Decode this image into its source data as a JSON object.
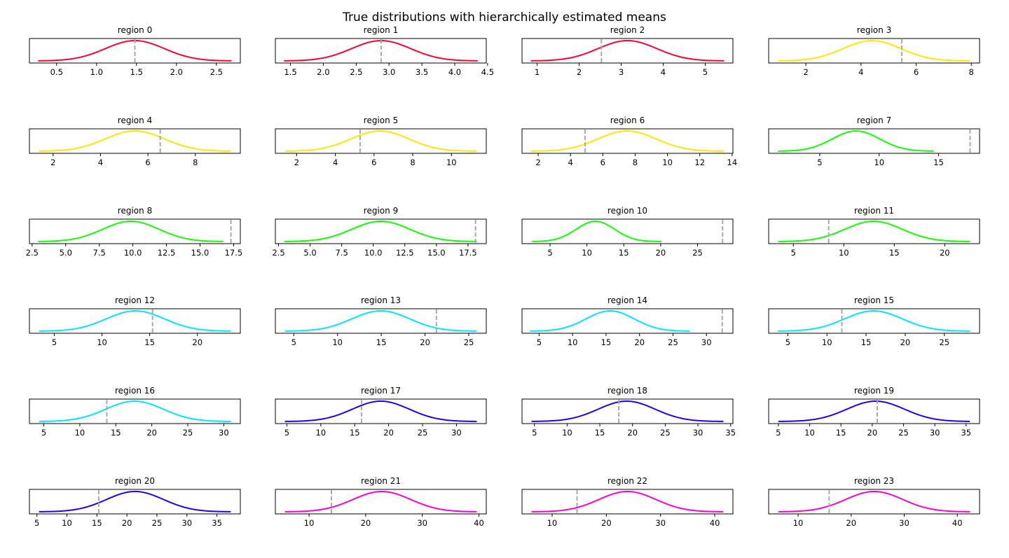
{
  "figure": {
    "title": "True distributions with hierarchically estimated means"
  },
  "colors": {
    "red": "#ff0033",
    "yellow": "#ffe600",
    "green": "#11ff00",
    "cyan": "#00e5ff",
    "blue": "#2200ee",
    "magenta": "#ff00d0",
    "estimate": "#a9a9a9"
  },
  "chart_data": [
    {
      "type": "line",
      "title": "region 0",
      "color": "red",
      "mu": 1.48,
      "sigma": 0.37,
      "x_range": [
        0.27,
        2.69
      ],
      "estimated_mean": 1.48,
      "xlim": [
        0.16,
        2.8
      ],
      "xticks": [
        "0.5",
        "1.0",
        "1.5",
        "2.0",
        "2.5"
      ],
      "xtick_values": [
        0.5,
        1.0,
        1.5,
        2.0,
        2.5
      ]
    },
    {
      "type": "line",
      "title": "region 1",
      "color": "red",
      "mu": 2.88,
      "sigma": 0.45,
      "x_range": [
        1.4,
        4.35
      ],
      "estimated_mean": 2.88,
      "xlim": [
        1.27,
        4.48
      ],
      "xticks": [
        "1.5",
        "2.0",
        "2.5",
        "3.0",
        "3.5",
        "4.0",
        "4.5"
      ],
      "xtick_values": [
        1.5,
        2.0,
        2.5,
        3.0,
        3.5,
        4.0,
        4.5
      ]
    },
    {
      "type": "line",
      "title": "region 2",
      "color": "red",
      "mu": 3.15,
      "sigma": 0.7,
      "x_range": [
        0.85,
        5.45
      ],
      "estimated_mean": 2.53,
      "xlim": [
        0.64,
        5.66
      ],
      "xticks": [
        "1",
        "2",
        "3",
        "4",
        "5"
      ],
      "xtick_values": [
        1,
        2,
        3,
        4,
        5
      ]
    },
    {
      "type": "line",
      "title": "region 3",
      "color": "yellow",
      "mu": 4.4,
      "sigma": 1.05,
      "x_range": [
        1.0,
        7.95
      ],
      "estimated_mean": 5.48,
      "xlim": [
        0.65,
        8.3
      ],
      "xticks": [
        "2",
        "4",
        "6",
        "8"
      ],
      "xtick_values": [
        2,
        4,
        6,
        8
      ]
    },
    {
      "type": "line",
      "title": "region 4",
      "color": "yellow",
      "mu": 5.45,
      "sigma": 1.25,
      "x_range": [
        1.4,
        9.5
      ],
      "estimated_mean": 6.52,
      "xlim": [
        1.0,
        9.9
      ],
      "xticks": [
        "2",
        "4",
        "6",
        "8"
      ],
      "xtick_values": [
        2,
        4,
        6,
        8
      ]
    },
    {
      "type": "line",
      "title": "region 5",
      "color": "yellow",
      "mu": 6.3,
      "sigma": 1.5,
      "x_range": [
        1.4,
        11.3
      ],
      "estimated_mean": 5.28,
      "xlim": [
        0.9,
        11.8
      ],
      "xticks": [
        "2",
        "4",
        "6",
        "8",
        "10"
      ],
      "xtick_values": [
        2,
        4,
        6,
        8,
        10
      ]
    },
    {
      "type": "line",
      "title": "region 6",
      "color": "yellow",
      "mu": 7.5,
      "sigma": 1.8,
      "x_range": [
        1.55,
        13.5
      ],
      "estimated_mean": 4.9,
      "xlim": [
        1.0,
        14.05
      ],
      "xticks": [
        "2",
        "4",
        "6",
        "8",
        "10",
        "12",
        "14"
      ],
      "xtick_values": [
        2,
        4,
        6,
        8,
        10,
        12,
        14
      ]
    },
    {
      "type": "line",
      "title": "region 7",
      "color": "green",
      "mu": 8.05,
      "sigma": 2.0,
      "x_range": [
        1.5,
        14.6
      ],
      "estimated_mean": 17.65,
      "xlim": [
        0.7,
        18.45
      ],
      "xticks": [
        "5",
        "10",
        "15"
      ],
      "xtick_values": [
        5,
        10,
        15
      ]
    },
    {
      "type": "line",
      "title": "region 8",
      "color": "green",
      "mu": 9.85,
      "sigma": 2.1,
      "x_range": [
        2.95,
        16.7
      ],
      "estimated_mean": 17.3,
      "xlim": [
        2.3,
        18.0
      ],
      "xticks": [
        "2.5",
        "5.0",
        "7.5",
        "10.0",
        "12.5",
        "15.0",
        "17.5"
      ],
      "xtick_values": [
        2.5,
        5.0,
        7.5,
        10.0,
        12.5,
        15.0,
        17.5
      ]
    },
    {
      "type": "line",
      "title": "region 9",
      "color": "green",
      "mu": 10.6,
      "sigma": 2.3,
      "x_range": [
        2.95,
        18.2
      ],
      "estimated_mean": 18.1,
      "xlim": [
        2.25,
        18.95
      ],
      "xticks": [
        "2.5",
        "5.0",
        "7.5",
        "10.0",
        "12.5",
        "15.0",
        "17.5"
      ],
      "xtick_values": [
        2.5,
        5.0,
        7.5,
        10.0,
        12.5,
        15.0,
        17.5
      ]
    },
    {
      "type": "line",
      "title": "region 10",
      "color": "green",
      "mu": 11.15,
      "sigma": 2.6,
      "x_range": [
        2.55,
        20.1
      ],
      "estimated_mean": 28.4,
      "xlim": [
        1.2,
        29.8
      ],
      "xticks": [
        "5",
        "10",
        "15",
        "20",
        "25"
      ],
      "xtick_values": [
        5,
        10,
        15,
        20,
        25
      ]
    },
    {
      "type": "line",
      "title": "region 11",
      "color": "green",
      "mu": 12.95,
      "sigma": 2.85,
      "x_range": [
        3.5,
        22.5
      ],
      "estimated_mean": 8.5,
      "xlim": [
        2.55,
        23.45
      ],
      "xticks": [
        "5",
        "10",
        "15",
        "20"
      ],
      "xtick_values": [
        5,
        10,
        15,
        20
      ]
    },
    {
      "type": "line",
      "title": "region 12",
      "color": "cyan",
      "mu": 13.5,
      "sigma": 3.05,
      "x_range": [
        3.4,
        23.5
      ],
      "estimated_mean": 15.3,
      "xlim": [
        2.4,
        24.5
      ],
      "xticks": [
        "5",
        "10",
        "15",
        "20"
      ],
      "xtick_values": [
        5,
        10,
        15,
        20
      ]
    },
    {
      "type": "line",
      "title": "region 13",
      "color": "cyan",
      "mu": 14.95,
      "sigma": 3.3,
      "x_range": [
        4.0,
        25.9
      ],
      "estimated_mean": 21.3,
      "xlim": [
        2.9,
        27.0
      ],
      "xticks": [
        "5",
        "10",
        "15",
        "20",
        "25"
      ],
      "xtick_values": [
        5,
        10,
        15,
        20,
        25
      ]
    },
    {
      "type": "line",
      "title": "region 14",
      "color": "cyan",
      "mu": 15.6,
      "sigma": 3.6,
      "x_range": [
        3.65,
        27.5
      ],
      "estimated_mean": 32.35,
      "xlim": [
        2.45,
        33.95
      ],
      "xticks": [
        "5",
        "10",
        "15",
        "20",
        "25",
        "30"
      ],
      "xtick_values": [
        5,
        10,
        15,
        20,
        25,
        30
      ]
    },
    {
      "type": "line",
      "title": "region 15",
      "color": "cyan",
      "mu": 15.95,
      "sigma": 3.7,
      "x_range": [
        3.75,
        28.3
      ],
      "estimated_mean": 11.9,
      "xlim": [
        2.55,
        29.5
      ],
      "xticks": [
        "5",
        "10",
        "15",
        "20",
        "25"
      ],
      "xtick_values": [
        5,
        10,
        15,
        20,
        25
      ]
    },
    {
      "type": "line",
      "title": "region 16",
      "color": "cyan",
      "mu": 17.6,
      "sigma": 4.0,
      "x_range": [
        4.35,
        31.0
      ],
      "estimated_mean": 13.75,
      "xlim": [
        3.0,
        32.3
      ],
      "xticks": [
        "5",
        "10",
        "15",
        "20",
        "25",
        "30"
      ],
      "xtick_values": [
        5,
        10,
        15,
        20,
        25,
        30
      ]
    },
    {
      "type": "line",
      "title": "region 17",
      "color": "blue",
      "mu": 18.85,
      "sigma": 4.2,
      "x_range": [
        4.7,
        33.0
      ],
      "estimated_mean": 16.0,
      "xlim": [
        3.3,
        34.4
      ],
      "xticks": [
        "5",
        "10",
        "15",
        "20",
        "25",
        "30"
      ],
      "xtick_values": [
        5,
        10,
        15,
        20,
        25,
        30
      ]
    },
    {
      "type": "line",
      "title": "region 18",
      "color": "blue",
      "mu": 19.1,
      "sigma": 4.35,
      "x_range": [
        4.55,
        33.9
      ],
      "estimated_mean": 17.9,
      "xlim": [
        3.1,
        35.35
      ],
      "xticks": [
        "5",
        "10",
        "15",
        "20",
        "25",
        "30",
        "35"
      ],
      "xtick_values": [
        5,
        10,
        15,
        20,
        25,
        30,
        35
      ]
    },
    {
      "type": "line",
      "title": "region 19",
      "color": "blue",
      "mu": 20.55,
      "sigma": 4.6,
      "x_range": [
        5.0,
        35.6
      ],
      "estimated_mean": 20.8,
      "xlim": [
        3.45,
        37.15
      ],
      "xticks": [
        "5",
        "10",
        "15",
        "20",
        "25",
        "30",
        "35"
      ],
      "xtick_values": [
        5,
        10,
        15,
        20,
        25,
        30,
        35
      ]
    },
    {
      "type": "line",
      "title": "region 20",
      "color": "blue",
      "mu": 21.35,
      "sigma": 4.75,
      "x_range": [
        5.35,
        37.3
      ],
      "estimated_mean": 15.3,
      "xlim": [
        3.75,
        38.9
      ],
      "xticks": [
        "5",
        "10",
        "15",
        "20",
        "25",
        "30",
        "35"
      ],
      "xtick_values": [
        5,
        10,
        15,
        20,
        25,
        30,
        35
      ]
    },
    {
      "type": "line",
      "title": "region 21",
      "color": "magenta",
      "mu": 22.85,
      "sigma": 5.1,
      "x_range": [
        5.75,
        39.6
      ],
      "estimated_mean": 13.95,
      "xlim": [
        4.05,
        41.3
      ],
      "xticks": [
        "10",
        "20",
        "30",
        "40"
      ],
      "xtick_values": [
        10,
        20,
        30,
        40
      ]
    },
    {
      "type": "line",
      "title": "region 22",
      "color": "magenta",
      "mu": 23.9,
      "sigma": 5.25,
      "x_range": [
        6.2,
        41.55
      ],
      "estimated_mean": 14.6,
      "xlim": [
        4.45,
        43.35
      ],
      "xticks": [
        "10",
        "20",
        "30",
        "40"
      ],
      "xtick_values": [
        10,
        20,
        30,
        40
      ]
    },
    {
      "type": "line",
      "title": "region 23",
      "color": "magenta",
      "mu": 24.35,
      "sigma": 5.4,
      "x_range": [
        6.3,
        42.4
      ],
      "estimated_mean": 15.85,
      "xlim": [
        4.45,
        44.2
      ],
      "xticks": [
        "10",
        "20",
        "30",
        "40"
      ],
      "xtick_values": [
        10,
        20,
        30,
        40
      ]
    }
  ]
}
